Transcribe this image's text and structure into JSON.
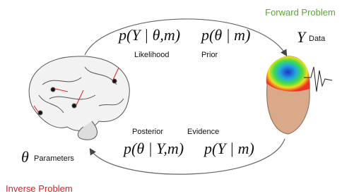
{
  "forward_label": "Forward Problem",
  "inverse_label": "Inverse Problem",
  "forward": {
    "likelihood_formula": "p(Y | θ,m)",
    "prior_formula": "p(θ | m)",
    "likelihood_label": "Likelihood",
    "prior_label": "Prior"
  },
  "inverse": {
    "posterior_formula": "p(θ | Y,m)",
    "evidence_formula": "p(Y | m)",
    "posterior_label": "Posterior",
    "evidence_label": "Evidence"
  },
  "data_node": {
    "symbol": "Y",
    "label": "Data"
  },
  "parameter_node": {
    "symbol": "θ",
    "label": "Parameters"
  }
}
